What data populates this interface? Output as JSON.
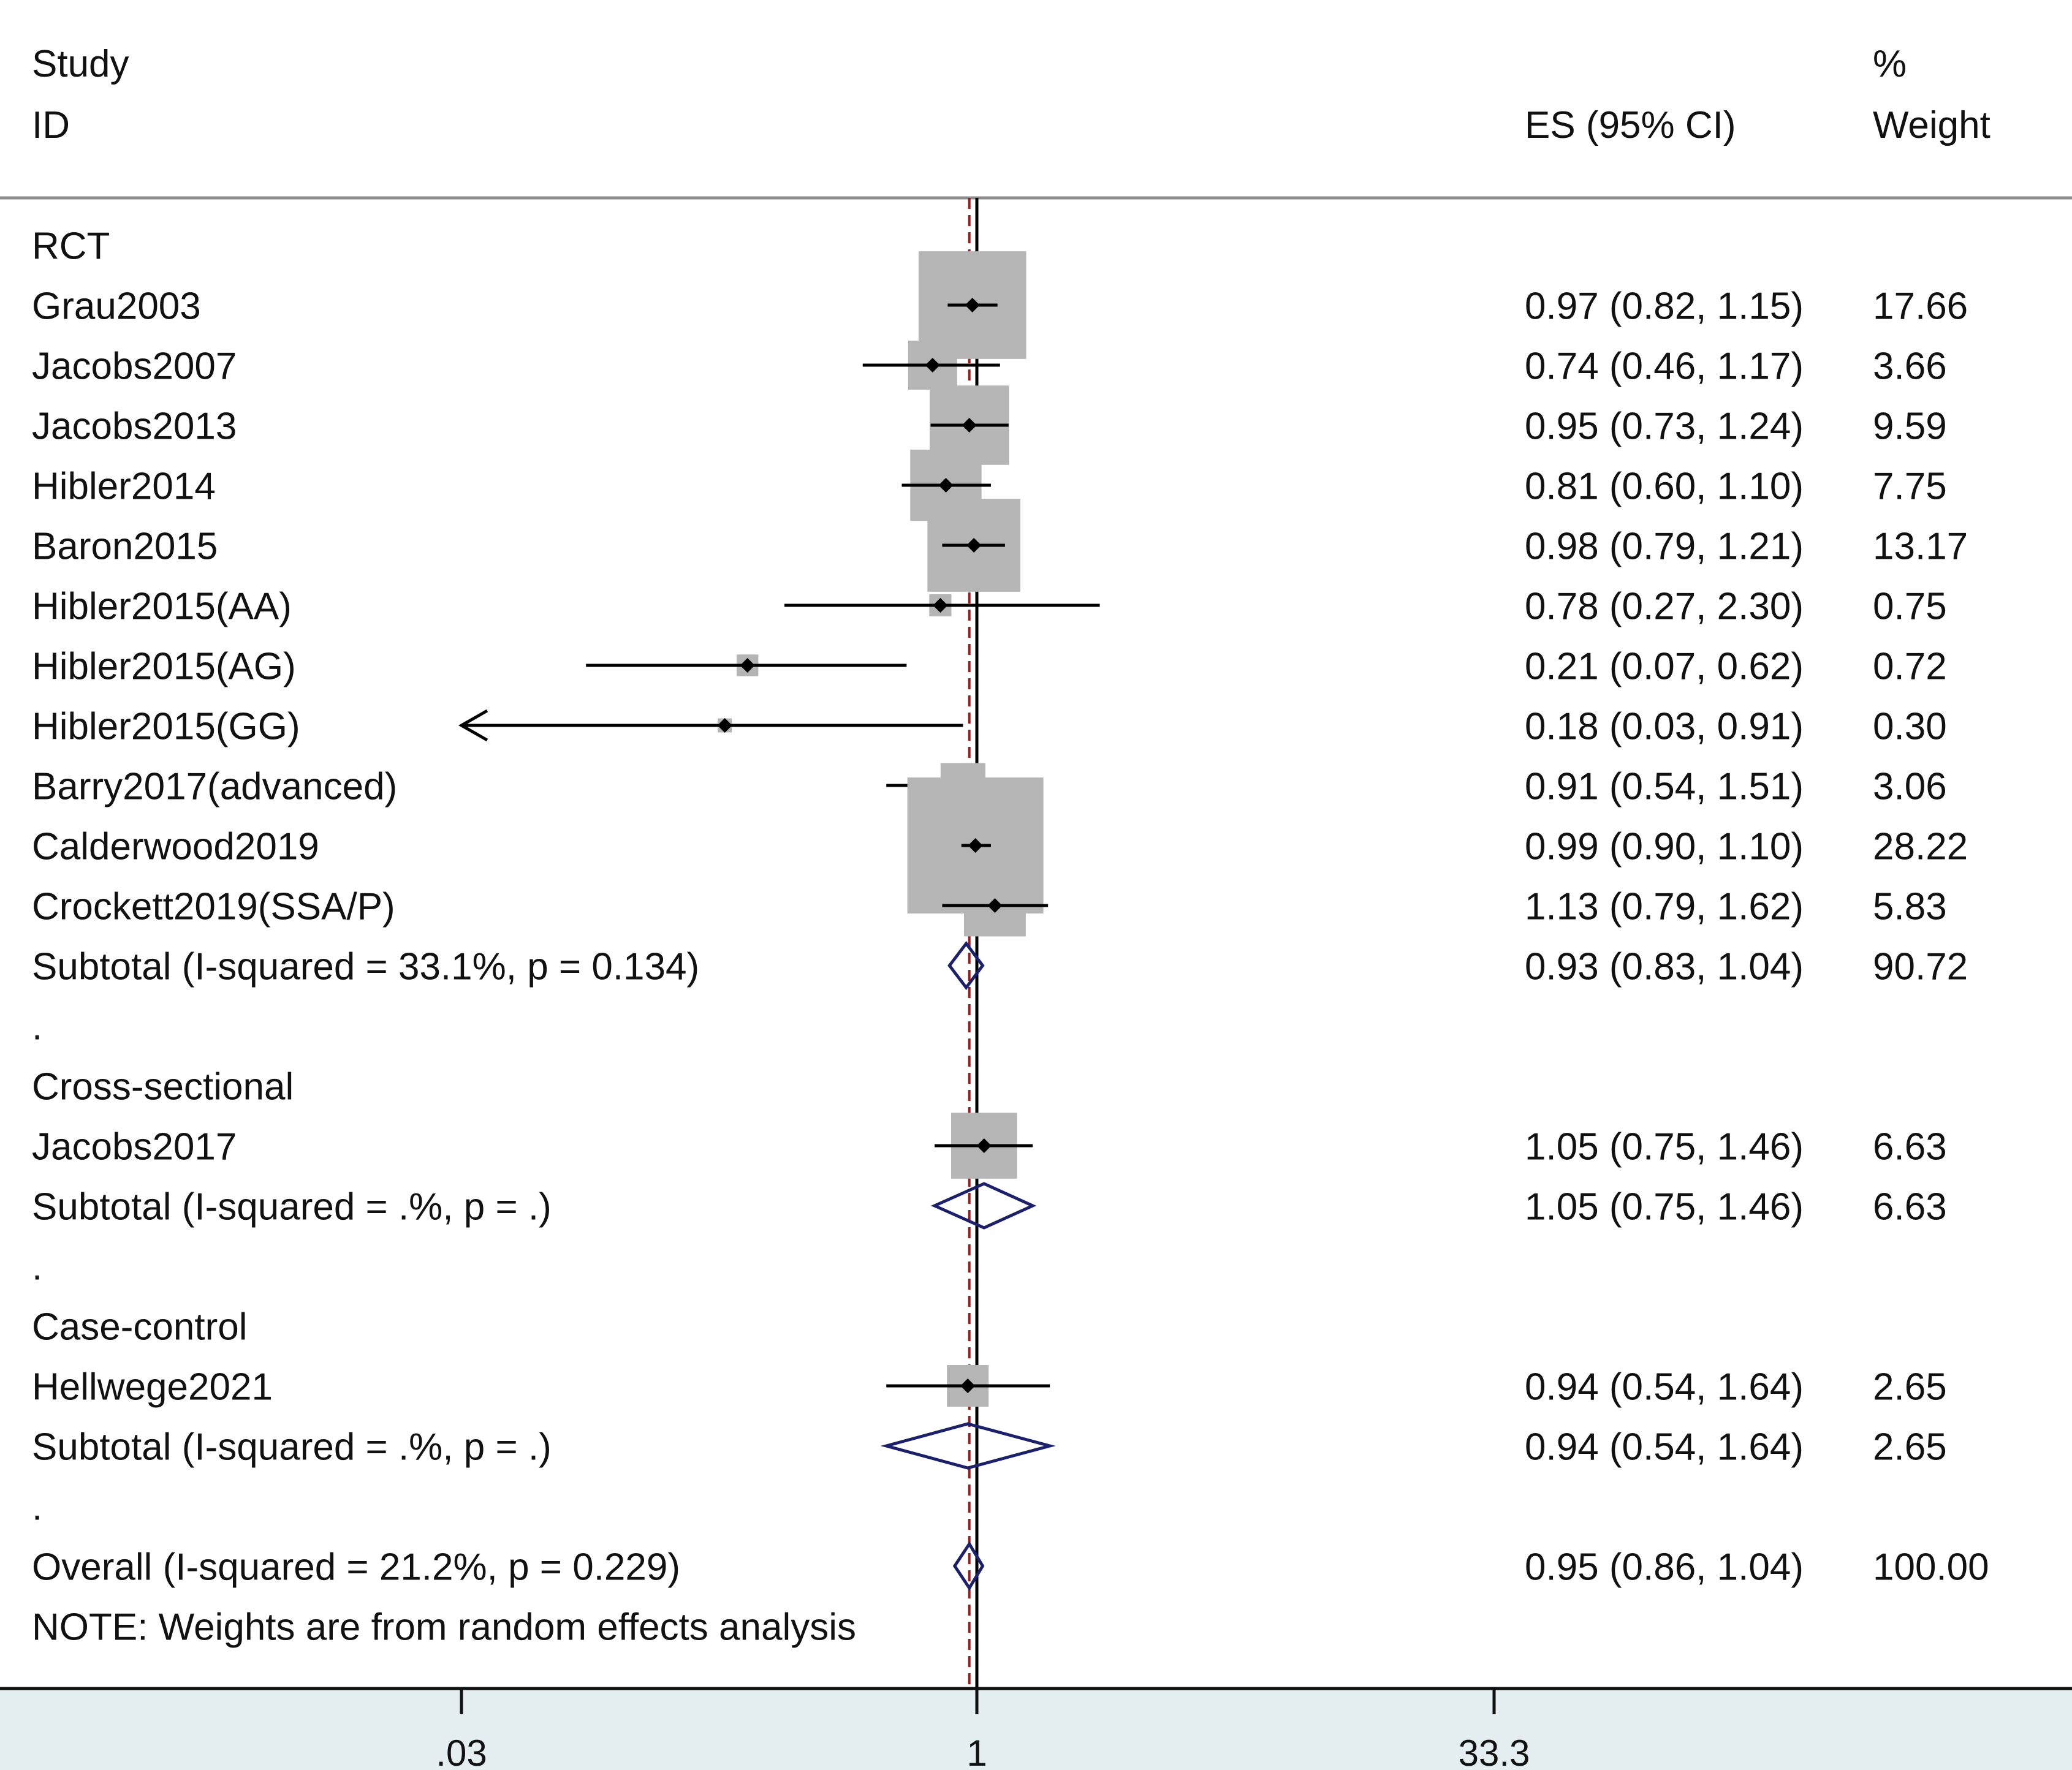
{
  "chart_data": {
    "type": "forest",
    "header": {
      "study_col": "Study",
      "id_col": "ID",
      "es_col": "ES (95% CI)",
      "weight_col_line1": "%",
      "weight_col_line2": "Weight"
    },
    "x_axis": {
      "scale": "log",
      "range": [
        0.03,
        33.3
      ],
      "ticks": [
        {
          "value": 0.03,
          "label": ".03"
        },
        {
          "value": 1,
          "label": "1"
        },
        {
          "value": 33.3,
          "label": "33.3"
        }
      ],
      "null_line": 1,
      "overall_line": 0.95
    },
    "rows": [
      {
        "kind": "group",
        "label": "RCT"
      },
      {
        "kind": "study",
        "label": "Grau2003",
        "es": 0.97,
        "lo": 0.82,
        "hi": 1.15,
        "weight": 17.66,
        "es_text": "0.97 (0.82, 1.15)",
        "weight_text": "17.66"
      },
      {
        "kind": "study",
        "label": "Jacobs2007",
        "es": 0.74,
        "lo": 0.46,
        "hi": 1.17,
        "weight": 3.66,
        "es_text": "0.74 (0.46, 1.17)",
        "weight_text": "3.66"
      },
      {
        "kind": "study",
        "label": "Jacobs2013",
        "es": 0.95,
        "lo": 0.73,
        "hi": 1.24,
        "weight": 9.59,
        "es_text": "0.95 (0.73, 1.24)",
        "weight_text": "9.59"
      },
      {
        "kind": "study",
        "label": "Hibler2014",
        "es": 0.81,
        "lo": 0.6,
        "hi": 1.1,
        "weight": 7.75,
        "es_text": "0.81 (0.60, 1.10)",
        "weight_text": "7.75"
      },
      {
        "kind": "study",
        "label": "Baron2015",
        "es": 0.98,
        "lo": 0.79,
        "hi": 1.21,
        "weight": 13.17,
        "es_text": "0.98 (0.79, 1.21)",
        "weight_text": "13.17"
      },
      {
        "kind": "study",
        "label": "Hibler2015(AA)",
        "es": 0.78,
        "lo": 0.27,
        "hi": 2.3,
        "weight": 0.75,
        "es_text": "0.78 (0.27, 2.30)",
        "weight_text": "0.75"
      },
      {
        "kind": "study",
        "label": "Hibler2015(AG)",
        "es": 0.21,
        "lo": 0.07,
        "hi": 0.62,
        "weight": 0.72,
        "es_text": "0.21 (0.07, 0.62)",
        "weight_text": "0.72"
      },
      {
        "kind": "study",
        "label": "Hibler2015(GG)",
        "es": 0.18,
        "lo": 0.03,
        "hi": 0.91,
        "weight": 0.3,
        "es_text": "0.18 (0.03, 0.91)",
        "weight_text": "0.30",
        "truncated_low": true
      },
      {
        "kind": "study",
        "label": "Barry2017(advanced)",
        "es": 0.91,
        "lo": 0.54,
        "hi": 1.51,
        "weight": 3.06,
        "es_text": "0.91 (0.54, 1.51)",
        "weight_text": "3.06"
      },
      {
        "kind": "study",
        "label": "Calderwood2019",
        "es": 0.99,
        "lo": 0.9,
        "hi": 1.1,
        "weight": 28.22,
        "es_text": "0.99 (0.90, 1.10)",
        "weight_text": "28.22"
      },
      {
        "kind": "study",
        "label": "Crockett2019(SSA/P)",
        "es": 1.13,
        "lo": 0.79,
        "hi": 1.62,
        "weight": 5.83,
        "es_text": "1.13 (0.79, 1.62)",
        "weight_text": "5.83"
      },
      {
        "kind": "subtotal",
        "label": "Subtotal  (I-squared = 33.1%, p = 0.134)",
        "es": 0.93,
        "lo": 0.83,
        "hi": 1.04,
        "es_text": "0.93 (0.83, 1.04)",
        "weight_text": "90.72"
      },
      {
        "kind": "spacer",
        "label": "."
      },
      {
        "kind": "group",
        "label": "Cross-sectional"
      },
      {
        "kind": "study",
        "label": "Jacobs2017",
        "es": 1.05,
        "lo": 0.75,
        "hi": 1.46,
        "weight": 6.63,
        "es_text": "1.05 (0.75, 1.46)",
        "weight_text": "6.63"
      },
      {
        "kind": "subtotal",
        "label": "Subtotal  (I-squared = .%, p = .)",
        "es": 1.05,
        "lo": 0.75,
        "hi": 1.46,
        "es_text": "1.05 (0.75, 1.46)",
        "weight_text": "6.63"
      },
      {
        "kind": "spacer",
        "label": "."
      },
      {
        "kind": "group",
        "label": "Case-control"
      },
      {
        "kind": "study",
        "label": "Hellwege2021",
        "es": 0.94,
        "lo": 0.54,
        "hi": 1.64,
        "weight": 2.65,
        "es_text": "0.94 (0.54, 1.64)",
        "weight_text": "2.65"
      },
      {
        "kind": "subtotal",
        "label": "Subtotal  (I-squared = .%, p = .)",
        "es": 0.94,
        "lo": 0.54,
        "hi": 1.64,
        "es_text": "0.94 (0.54, 1.64)",
        "weight_text": "2.65"
      },
      {
        "kind": "spacer",
        "label": "."
      },
      {
        "kind": "overall",
        "label": "Overall  (I-squared = 21.2%, p = 0.229)",
        "es": 0.95,
        "lo": 0.86,
        "hi": 1.04,
        "es_text": "0.95 (0.86, 1.04)",
        "weight_text": "100.00"
      },
      {
        "kind": "note",
        "label": "NOTE: Weights are from random effects analysis"
      }
    ],
    "colors": {
      "box": "#b5b5b5",
      "diamond": "#1a1f6e",
      "null_line": "#000000",
      "overall_line": "#a01818",
      "axis_band": "#e4eef1"
    }
  }
}
